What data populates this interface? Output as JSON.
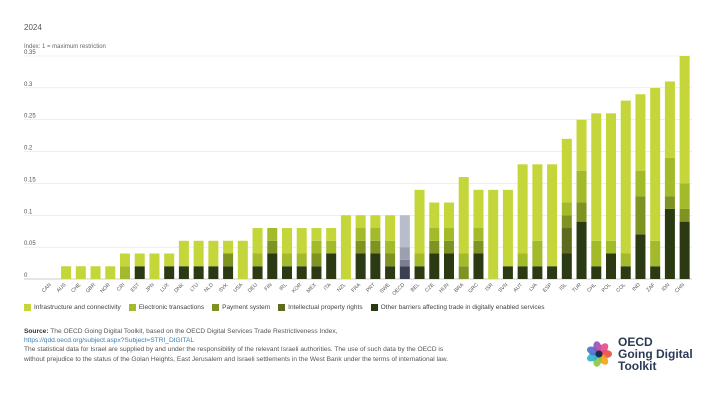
{
  "header": {
    "year": "2024",
    "subtitle": "Index: 1 = maximum restriction"
  },
  "chart_data": {
    "type": "bar",
    "stacked": true,
    "ylim": [
      0,
      0.35
    ],
    "yticks": [
      "0",
      "0.05",
      "0.1",
      "0.15",
      "0.2",
      "0.25",
      "0.3",
      "0.35"
    ],
    "grid": "horizontal",
    "legend_position": "bottom",
    "categories": [
      "CAN",
      "AUS",
      "CHE",
      "GBR",
      "NOR",
      "CRI",
      "EST",
      "JPN",
      "LUX",
      "DNK",
      "LTU",
      "NLD",
      "SVK",
      "USA",
      "DEU",
      "FIN",
      "IRL",
      "KOR",
      "MEX",
      "ITA",
      "NZL",
      "FRA",
      "PRT",
      "SWE",
      "OECD",
      "BEL",
      "CZE",
      "HUN",
      "BRA",
      "GRC",
      "ISR",
      "SVN",
      "AUT",
      "LVA",
      "ESP",
      "ISL",
      "TUR",
      "CHL",
      "POL",
      "COL",
      "IND",
      "ZAF",
      "IDN",
      "CHN"
    ],
    "highlight_category": "OECD",
    "series": [
      {
        "name": "Other barriers affecting trade in digitally enabled services",
        "color": "#2b3a12",
        "highlight_color": "#3a3f52",
        "values": [
          0,
          0,
          0,
          0,
          0,
          0,
          0.02,
          0,
          0.02,
          0.02,
          0.02,
          0.02,
          0.02,
          0,
          0.02,
          0.04,
          0.02,
          0.02,
          0.02,
          0.04,
          0,
          0.04,
          0.04,
          0.02,
          0.02,
          0.02,
          0.04,
          0.04,
          0,
          0.04,
          0,
          0.02,
          0.02,
          0.02,
          0.02,
          0.04,
          0.09,
          0.02,
          0.04,
          0.02,
          0.07,
          0.02,
          0.11,
          0.09
        ]
      },
      {
        "name": "Intellectual property rights",
        "color": "#5e6b1e",
        "highlight_color": "#5c5f70",
        "values": [
          0,
          0,
          0,
          0,
          0,
          0,
          0,
          0,
          0,
          0,
          0,
          0,
          0,
          0,
          0,
          0,
          0,
          0,
          0,
          0,
          0,
          0,
          0,
          0,
          0,
          0,
          0,
          0,
          0,
          0,
          0,
          0,
          0,
          0,
          0,
          0.04,
          0,
          0,
          0,
          0,
          0,
          0,
          0,
          0
        ]
      },
      {
        "name": "Payment system",
        "color": "#7f9322",
        "highlight_color": "#7c7f8f",
        "values": [
          0,
          0,
          0,
          0,
          0,
          0,
          0,
          0,
          0,
          0,
          0,
          0,
          0.02,
          0,
          0,
          0.02,
          0,
          0,
          0.02,
          0,
          0,
          0.02,
          0.02,
          0.02,
          0.01,
          0,
          0.02,
          0.02,
          0.02,
          0.02,
          0,
          0,
          0,
          0,
          0,
          0.02,
          0.03,
          0,
          0,
          0,
          0.06,
          0,
          0.02,
          0.02
        ]
      },
      {
        "name": "Electronic transactions",
        "color": "#a3ba2a",
        "highlight_color": "#9c9fae",
        "values": [
          0,
          0,
          0,
          0,
          0,
          0.02,
          0,
          0,
          0,
          0,
          0,
          0,
          0,
          0,
          0.02,
          0.02,
          0.02,
          0.02,
          0.02,
          0.02,
          0,
          0.02,
          0.02,
          0.02,
          0.02,
          0.02,
          0.02,
          0.02,
          0.02,
          0.02,
          0,
          0,
          0.02,
          0.04,
          0,
          0.02,
          0.05,
          0.04,
          0.02,
          0.02,
          0.04,
          0.04,
          0.06,
          0.04
        ]
      },
      {
        "name": "Infrastructure and connectivity",
        "color": "#c5d63a",
        "highlight_color": "#b9bcca",
        "values": [
          0,
          0.02,
          0.02,
          0.02,
          0.02,
          0.02,
          0.02,
          0.04,
          0.02,
          0.04,
          0.04,
          0.04,
          0.02,
          0.06,
          0.04,
          0,
          0.04,
          0.04,
          0.02,
          0.02,
          0.1,
          0.02,
          0.02,
          0.04,
          0.05,
          0.1,
          0.04,
          0.04,
          0.12,
          0.06,
          0.14,
          0.12,
          0.14,
          0.12,
          0.16,
          0.1,
          0.08,
          0.2,
          0.2,
          0.24,
          0.12,
          0.24,
          0.12,
          0.2
        ]
      }
    ]
  },
  "legend": [
    {
      "label": "Infrastructure and connectivity",
      "color": "#c5d63a"
    },
    {
      "label": "Electronic transactions",
      "color": "#a3ba2a"
    },
    {
      "label": "Payment system",
      "color": "#7f9322"
    },
    {
      "label": "Intellectual property rights",
      "color": "#5e6b1e"
    },
    {
      "label": "Other barriers affecting trade in digitally enabled services",
      "color": "#2b3a12"
    }
  ],
  "source": {
    "label": "Source:",
    "text": "The OECD Going Digital Toolkit, based on the OECD Digital Services Trade Restrictiveness Index,",
    "link": "https://qdd.oecd.org/subject.aspx?Subject=STRI_DIGITAL",
    "note": "The statistical data for Israel are supplied by and under the responsibility of the relevant Israeli authorities. The use of such data by the OECD is without prejudice to the status of the Golan Heights, East Jerusalem and Israeli settlements in the West Bank under the terms of international law."
  },
  "logo": {
    "line1": "OECD",
    "line2": "Going Digital",
    "line3": "Toolkit",
    "petal_colors": [
      "#e94e3c",
      "#f6a01a",
      "#8cc63f",
      "#2bb5c9",
      "#4a6fd1",
      "#9b4fb5",
      "#e64a8b"
    ]
  }
}
